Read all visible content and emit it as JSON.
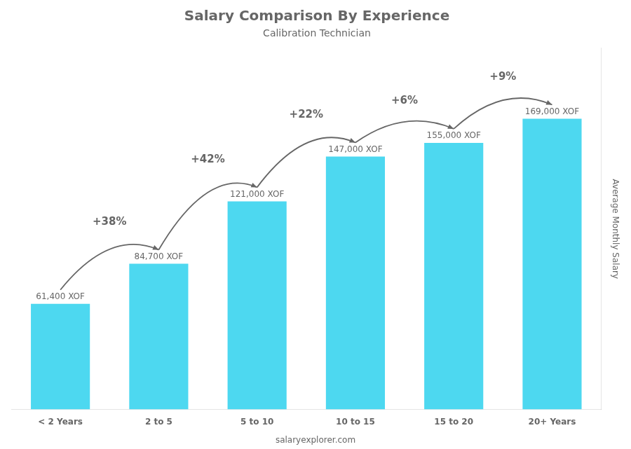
{
  "chart_data": {
    "type": "bar",
    "title": "Salary Comparison By Experience",
    "subtitle": "Calibration Technician",
    "ylabel": "Average Monthly Salary",
    "categories": [
      "< 2 Years",
      "2 to 5",
      "5 to 10",
      "10 to 15",
      "15 to 20",
      "20+ Years"
    ],
    "values": [
      61400,
      84700,
      121000,
      147000,
      155000,
      169000
    ],
    "value_labels": [
      "61,400 XOF",
      "84,700 XOF",
      "121,000 XOF",
      "147,000 XOF",
      "155,000 XOF",
      "169,000 XOF"
    ],
    "data_labels": true,
    "annotations": [
      "+38%",
      "+42%",
      "+22%",
      "+6%",
      "+9%"
    ],
    "source": "salaryexplorer.com",
    "color": "#4dd8f0",
    "ylim": [
      0,
      210000
    ],
    "tick_labels": "x",
    "grid": false
  }
}
